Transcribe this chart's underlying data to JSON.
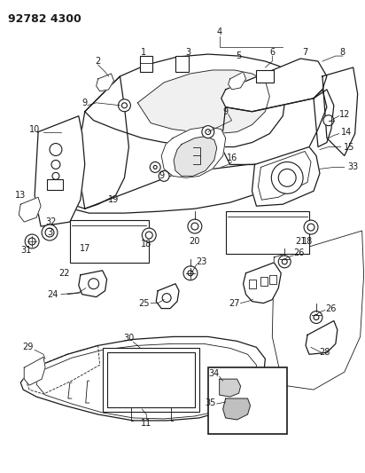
{
  "title": "92782 4300",
  "bg_color": "#ffffff",
  "line_color": "#1a1a1a",
  "title_fontsize": 9,
  "label_fontsize": 7,
  "fig_width": 4.12,
  "fig_height": 5.33,
  "dpi": 100
}
